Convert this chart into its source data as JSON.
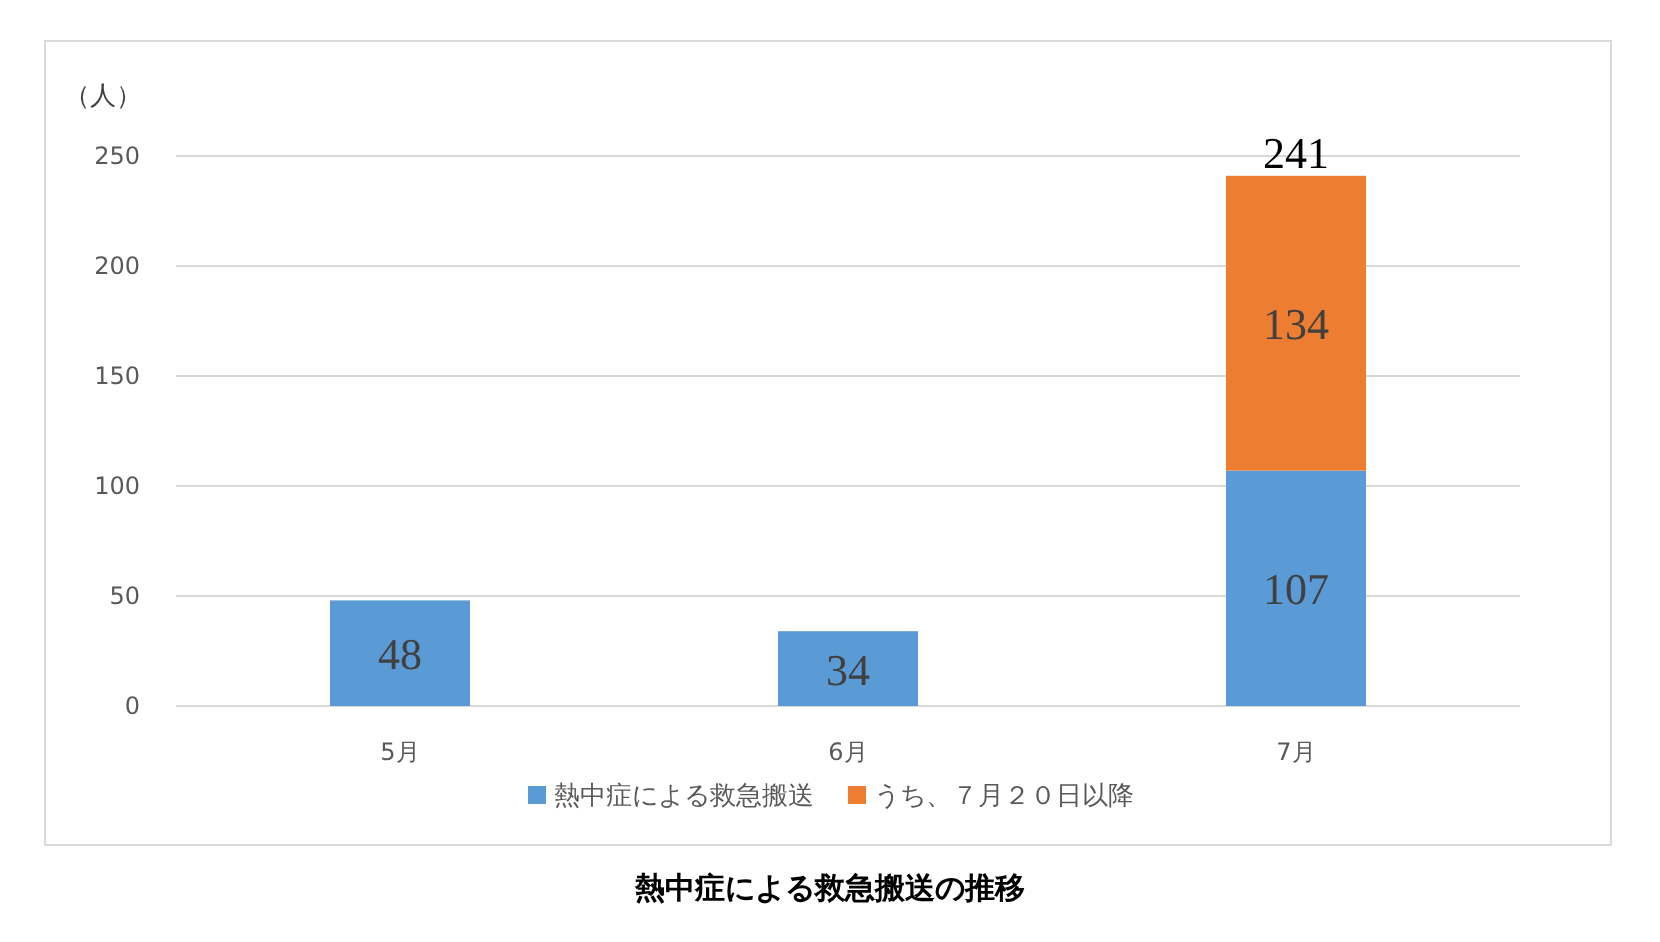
{
  "chart_data": {
    "type": "bar",
    "title": "熱中症による救急搬送の推移",
    "ylabel": "（人）",
    "categories": [
      "5月",
      "6月",
      "7月"
    ],
    "series": [
      {
        "name": "熱中症による救急搬送",
        "color": "#5b9bd5",
        "values": [
          48,
          34,
          107
        ]
      },
      {
        "name": "うち、７月２０日以降",
        "color": "#ed7d31",
        "values": [
          null,
          null,
          134
        ]
      }
    ],
    "stacked": true,
    "data_labels": true,
    "totals": [
      null,
      null,
      "241"
    ],
    "ylim": [
      0,
      250
    ],
    "yticks": [
      0,
      50,
      100,
      150,
      200,
      250
    ],
    "grid": "y",
    "legend": "bottom"
  }
}
